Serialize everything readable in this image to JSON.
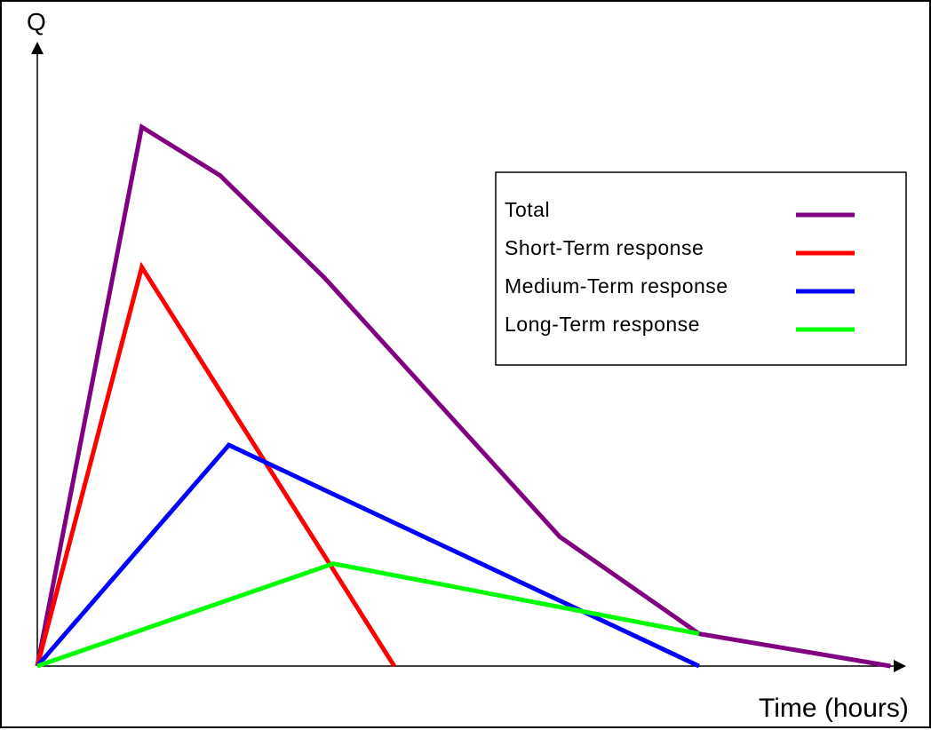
{
  "chart_data": {
    "type": "line",
    "title": "",
    "xlabel": "Time (hours)",
    "ylabel": "Q",
    "xlim": [
      0,
      10
    ],
    "ylim": [
      0,
      10
    ],
    "grid": false,
    "legend_position": "top-right",
    "series": [
      {
        "name": "Total",
        "color": "#800080",
        "x": [
          0,
          1.2,
          2.1,
          3.3,
          6.0,
          7.6,
          9.8
        ],
        "y": [
          0,
          10.0,
          9.1,
          7.2,
          2.4,
          0.6,
          0
        ]
      },
      {
        "name": "Short-Term response",
        "color": "#ff0000",
        "x": [
          0,
          1.2,
          4.1
        ],
        "y": [
          0,
          7.4,
          0
        ]
      },
      {
        "name": "Medium-Term response",
        "color": "#0000ff",
        "x": [
          0,
          2.2,
          7.6
        ],
        "y": [
          0,
          4.1,
          0
        ]
      },
      {
        "name": "Long-Term response",
        "color": "#00ff00",
        "x": [
          0,
          3.4,
          7.6
        ],
        "y": [
          0,
          1.9,
          0.6
        ]
      }
    ]
  }
}
